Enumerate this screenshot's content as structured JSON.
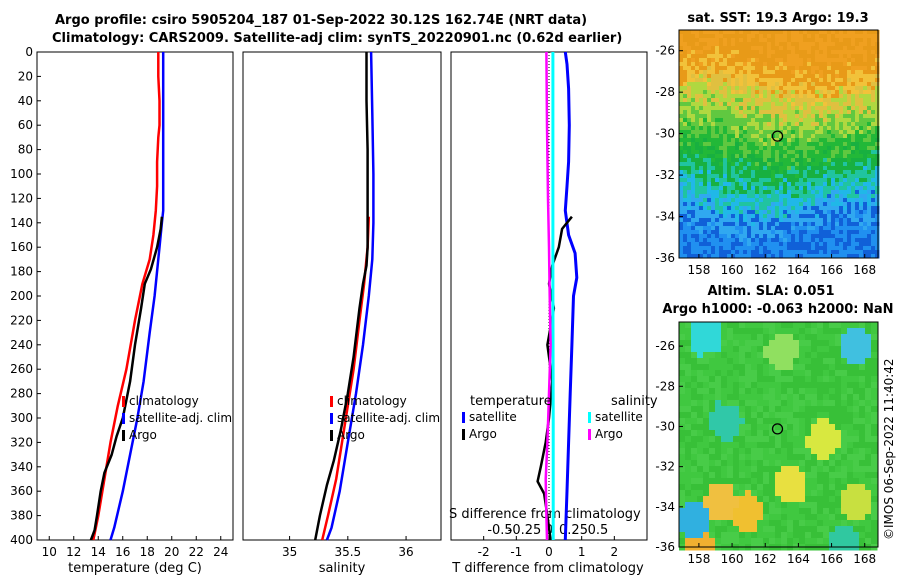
{
  "header": {
    "line1": "Argo profile: csiro 5905204_187 01-Sep-2022 30.12S 162.74E (NRT data)",
    "line2": "Climatology: CARS2009. Satellite-adj clim: synTS_20220901.nc (0.62d earlier)"
  },
  "colors": {
    "climatology": "#ff0000",
    "satellite": "#0000ff",
    "argo": "#000000",
    "sat_salinity": "#00ffff",
    "salinity_argo": "#ff00ff"
  },
  "chart_data": [
    {
      "type": "line",
      "id": "temperature",
      "xlabel": "temperature (deg C)",
      "ylabel": "",
      "xlim": [
        9,
        25
      ],
      "ylim": [
        400,
        0
      ],
      "xticks": [
        10,
        12,
        14,
        16,
        18,
        20,
        22,
        24
      ],
      "yticks": [
        0,
        20,
        40,
        60,
        80,
        100,
        120,
        140,
        160,
        180,
        200,
        220,
        240,
        260,
        280,
        300,
        320,
        340,
        360,
        380,
        400
      ],
      "legend": [
        "climatology",
        "satellite-adj. clim",
        "Argo"
      ],
      "series": [
        {
          "name": "climatology",
          "points": [
            [
              18.9,
              0
            ],
            [
              18.9,
              20
            ],
            [
              19.0,
              40
            ],
            [
              19.0,
              60
            ],
            [
              18.9,
              70
            ],
            [
              18.8,
              90
            ],
            [
              18.8,
              110
            ],
            [
              18.7,
              130
            ],
            [
              18.5,
              150
            ],
            [
              18.2,
              170
            ],
            [
              17.6,
              190
            ],
            [
              17.0,
              220
            ],
            [
              16.3,
              260
            ],
            [
              15.6,
              290
            ],
            [
              15.0,
              320
            ],
            [
              14.5,
              350
            ],
            [
              14.0,
              380
            ],
            [
              13.6,
              400
            ]
          ]
        },
        {
          "name": "satellite-adj. clim",
          "points": [
            [
              19.3,
              0
            ],
            [
              19.3,
              50
            ],
            [
              19.3,
              100
            ],
            [
              19.3,
              130
            ],
            [
              19.2,
              140
            ],
            [
              19.0,
              160
            ],
            [
              18.6,
              200
            ],
            [
              18.2,
              230
            ],
            [
              17.7,
              270
            ],
            [
              17.2,
              300
            ],
            [
              16.6,
              330
            ],
            [
              16.0,
              360
            ],
            [
              15.3,
              390
            ],
            [
              15.0,
              400
            ]
          ]
        },
        {
          "name": "Argo",
          "points": [
            [
              19.2,
              135
            ],
            [
              19.1,
              145
            ],
            [
              18.8,
              160
            ],
            [
              18.3,
              178
            ],
            [
              17.8,
              190
            ],
            [
              17.5,
              210
            ],
            [
              17.0,
              240
            ],
            [
              16.6,
              270
            ],
            [
              16.0,
              300
            ],
            [
              15.5,
              315
            ],
            [
              15.1,
              330
            ],
            [
              14.5,
              345
            ],
            [
              14.2,
              360
            ],
            [
              13.9,
              380
            ],
            [
              13.7,
              392
            ],
            [
              13.4,
              400
            ]
          ]
        }
      ]
    },
    {
      "type": "line",
      "id": "salinity",
      "xlabel": "salinity",
      "ylabel": "",
      "xlim": [
        34.6,
        36.3
      ],
      "ylim": [
        400,
        0
      ],
      "xticks": [
        35,
        35.5,
        36
      ],
      "tick_labels": [
        "35",
        "35.5",
        "36"
      ],
      "legend": [
        "climatology",
        "satellite-adj. clim",
        "Argo"
      ],
      "series": [
        {
          "name": "climatology",
          "points": [
            [
              35.68,
              135
            ],
            [
              35.67,
              160
            ],
            [
              35.64,
              190
            ],
            [
              35.6,
              220
            ],
            [
              35.55,
              260
            ],
            [
              35.5,
              290
            ],
            [
              35.45,
              320
            ],
            [
              35.4,
              350
            ],
            [
              35.33,
              380
            ],
            [
              35.28,
              400
            ]
          ]
        },
        {
          "name": "satellite-adj. clim",
          "points": [
            [
              35.7,
              0
            ],
            [
              35.71,
              50
            ],
            [
              35.72,
              100
            ],
            [
              35.72,
              140
            ],
            [
              35.71,
              170
            ],
            [
              35.68,
              200
            ],
            [
              35.63,
              240
            ],
            [
              35.57,
              280
            ],
            [
              35.5,
              320
            ],
            [
              35.43,
              360
            ],
            [
              35.36,
              390
            ],
            [
              35.32,
              400
            ]
          ]
        },
        {
          "name": "Argo",
          "points": [
            [
              35.66,
              0
            ],
            [
              35.66,
              40
            ],
            [
              35.67,
              80
            ],
            [
              35.67,
              120
            ],
            [
              35.67,
              160
            ],
            [
              35.66,
              175
            ],
            [
              35.63,
              190
            ],
            [
              35.6,
              210
            ],
            [
              35.55,
              250
            ],
            [
              35.5,
              280
            ],
            [
              35.44,
              310
            ],
            [
              35.38,
              335
            ],
            [
              35.32,
              355
            ],
            [
              35.26,
              380
            ],
            [
              35.22,
              400
            ]
          ]
        }
      ]
    },
    {
      "type": "line",
      "id": "difference",
      "xlabel": "T difference from climatology",
      "xlabel_top": "S difference from climatology",
      "xlim": [
        -3,
        3
      ],
      "ylim": [
        400,
        0
      ],
      "xticks": [
        -2,
        -1,
        0,
        1,
        2
      ],
      "tick_labels": [
        "-2",
        "-1",
        "0",
        "1",
        "2"
      ],
      "s_tick_labels": [
        "-0.5",
        "-0.25",
        "0",
        "0.25",
        "0.5"
      ],
      "legend_temperature": {
        "heading": "temperature",
        "items": [
          "satellite",
          "Argo"
        ]
      },
      "legend_salinity": {
        "heading": "salinity",
        "items": [
          "satellite",
          "Argo"
        ]
      },
      "series": [
        {
          "name": "T satellite",
          "points": [
            [
              0.5,
              0
            ],
            [
              0.55,
              10
            ],
            [
              0.6,
              30
            ],
            [
              0.62,
              60
            ],
            [
              0.6,
              90
            ],
            [
              0.55,
              110
            ],
            [
              0.5,
              130
            ],
            [
              0.6,
              150
            ],
            [
              0.8,
              165
            ],
            [
              0.85,
              185
            ],
            [
              0.75,
              200
            ],
            [
              0.7,
              240
            ],
            [
              0.65,
              280
            ],
            [
              0.6,
              320
            ],
            [
              0.55,
              360
            ],
            [
              0.5,
              400
            ]
          ]
        },
        {
          "name": "T Argo",
          "points": [
            [
              0.7,
              135
            ],
            [
              0.4,
              145
            ],
            [
              0.3,
              160
            ],
            [
              0.1,
              175
            ],
            [
              0.0,
              190
            ],
            [
              0.15,
              210
            ],
            [
              -0.05,
              240
            ],
            [
              0.1,
              270
            ],
            [
              0.0,
              300
            ],
            [
              -0.1,
              320
            ],
            [
              -0.25,
              340
            ],
            [
              -0.35,
              352
            ],
            [
              -0.15,
              362
            ],
            [
              -0.05,
              380
            ],
            [
              0.05,
              400
            ]
          ]
        },
        {
          "name": "S satellite",
          "points": [
            [
              0.12,
              0
            ],
            [
              0.12,
              100
            ],
            [
              0.12,
              200
            ],
            [
              0.13,
              300
            ],
            [
              0.13,
              400
            ]
          ]
        },
        {
          "name": "S Argo",
          "points": [
            [
              -0.08,
              0
            ],
            [
              -0.06,
              60
            ],
            [
              -0.03,
              120
            ],
            [
              0.0,
              160
            ],
            [
              0.02,
              200
            ],
            [
              0.05,
              240
            ],
            [
              0.0,
              280
            ],
            [
              -0.05,
              320
            ],
            [
              -0.1,
              350
            ],
            [
              -0.08,
              380
            ],
            [
              -0.06,
              400
            ]
          ]
        }
      ]
    },
    {
      "type": "heatmap",
      "id": "sst-map",
      "title": "sat. SST: 19.3  Argo: 19.3",
      "xlim": [
        156.8,
        168.8
      ],
      "ylim": [
        -36,
        -25
      ],
      "xticks": [
        158,
        160,
        162,
        164,
        166,
        168
      ],
      "yticks": [
        -26,
        -28,
        -30,
        -32,
        -34,
        -36
      ],
      "marker": {
        "lon": 162.74,
        "lat": -30.12
      }
    },
    {
      "type": "heatmap",
      "id": "sla-map",
      "title": "Altim. SLA: 0.051",
      "subtitle": "Argo h1000: -0.063 h2000: NaN",
      "xlim": [
        156.8,
        168.8
      ],
      "ylim": [
        -36,
        -24.8
      ],
      "xticks": [
        158,
        160,
        162,
        164,
        166,
        168
      ],
      "yticks": [
        -26,
        -28,
        -30,
        -32,
        -34,
        -36
      ],
      "marker": {
        "lon": 162.74,
        "lat": -30.12
      }
    }
  ],
  "credit": "©IMOS 06-Sep-2022 11:40:42"
}
